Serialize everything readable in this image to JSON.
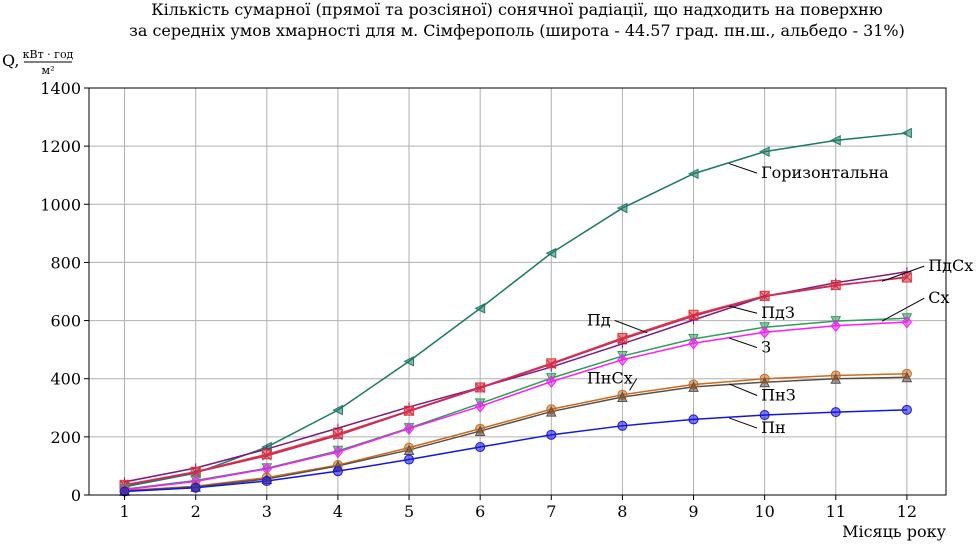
{
  "chart_data": {
    "type": "line",
    "title": "Кількість сумарної (прямої та розсіяної) сонячної радіації, що надходить на поверхню",
    "subtitle": "за середніх умов хмарності для м. Сімферополь (широта - 44.57 град. пн.ш., альбедо - 31%)",
    "ylabel": "Q,",
    "ylabel_unit_num": "кВт · год",
    "ylabel_unit_den": "м²",
    "xlabel": "Місяць року",
    "x": [
      1,
      2,
      3,
      4,
      5,
      6,
      7,
      8,
      9,
      10,
      11,
      12
    ],
    "xlim": [
      0.5,
      12.55
    ],
    "ylim": [
      0,
      1400
    ],
    "x_ticks": [
      "1",
      "2",
      "3",
      "4",
      "5",
      "6",
      "7",
      "8",
      "9",
      "10",
      "11",
      "12"
    ],
    "y_ticks": [
      "0",
      "200",
      "400",
      "600",
      "800",
      "1000",
      "1200",
      "1400"
    ],
    "grid": true,
    "series": [
      {
        "name": "Горизонтальна",
        "color": "#1b7a66",
        "marker": "triangle-left",
        "values": [
          28,
          75,
          165,
          292,
          460,
          642,
          832,
          987,
          1105,
          1181,
          1220,
          1245
        ]
      },
      {
        "name": "ПдСх",
        "color": "#7d1a7d",
        "marker": "plus",
        "values": [
          45,
          93,
          158,
          230,
          303,
          370,
          440,
          520,
          602,
          683,
          730,
          768
        ]
      },
      {
        "name": "Пд",
        "color": "#e8352b",
        "marker": "square",
        "values": [
          35,
          80,
          140,
          210,
          290,
          370,
          453,
          540,
          620,
          685,
          722,
          748
        ]
      },
      {
        "name": "ПдЗ",
        "color": "#c22a6b",
        "marker": "x",
        "values": [
          33,
          78,
          135,
          205,
          288,
          368,
          450,
          536,
          615,
          683,
          720,
          750
        ]
      },
      {
        "name": "Сх",
        "color": "#2e9e58",
        "marker": "triangle-down",
        "values": [
          20,
          50,
          92,
          152,
          230,
          315,
          402,
          478,
          537,
          577,
          598,
          608
        ]
      },
      {
        "name": "З",
        "color": "#ff1aff",
        "marker": "diamond",
        "values": [
          18,
          47,
          90,
          148,
          228,
          305,
          390,
          465,
          522,
          560,
          582,
          595
        ]
      },
      {
        "name": "ПнСх",
        "color": "#c96b1e",
        "marker": "circle",
        "values": [
          15,
          30,
          60,
          103,
          163,
          228,
          295,
          345,
          380,
          400,
          411,
          417
        ]
      },
      {
        "name": "ПнЗ",
        "color": "#5c4f47",
        "marker": "triangle-up",
        "values": [
          14,
          28,
          55,
          100,
          155,
          220,
          287,
          337,
          372,
          388,
          400,
          405
        ]
      },
      {
        "name": "Пн",
        "color": "#1414e6",
        "marker": "circle",
        "values": [
          12,
          25,
          48,
          82,
          122,
          165,
          207,
          238,
          260,
          275,
          285,
          293
        ]
      }
    ],
    "annotations": [
      {
        "text": "Горизонтальна",
        "series": "Горизонтальна",
        "x": 9.5,
        "y": 1140,
        "label_x": 9.95,
        "label_y": 1090
      },
      {
        "text": "ПдСх",
        "series": "ПдСх",
        "x": 11.65,
        "y": 735,
        "label_x": 12.3,
        "label_y": 770
      },
      {
        "text": "Сх",
        "series": "Сх",
        "x": 11.65,
        "y": 598,
        "label_x": 12.3,
        "label_y": 660
      },
      {
        "text": "Пд",
        "series": "Пд",
        "x": 8.35,
        "y": 558,
        "label_x": 7.5,
        "label_y": 583
      },
      {
        "text": "ПдЗ",
        "series": "ПдЗ",
        "x": 9.5,
        "y": 650,
        "label_x": 9.95,
        "label_y": 608
      },
      {
        "text": "З",
        "series": "З",
        "x": 9.5,
        "y": 540,
        "label_x": 9.95,
        "label_y": 490
      },
      {
        "text": "ПнСх",
        "series": "ПнСх",
        "x": 8.1,
        "y": 360,
        "label_x": 7.5,
        "label_y": 383
      },
      {
        "text": "ПнЗ",
        "series": "ПнЗ",
        "x": 9.5,
        "y": 382,
        "label_x": 9.95,
        "label_y": 325
      },
      {
        "text": "Пн",
        "series": "Пн",
        "x": 9.5,
        "y": 265,
        "label_x": 9.95,
        "label_y": 213
      }
    ]
  }
}
